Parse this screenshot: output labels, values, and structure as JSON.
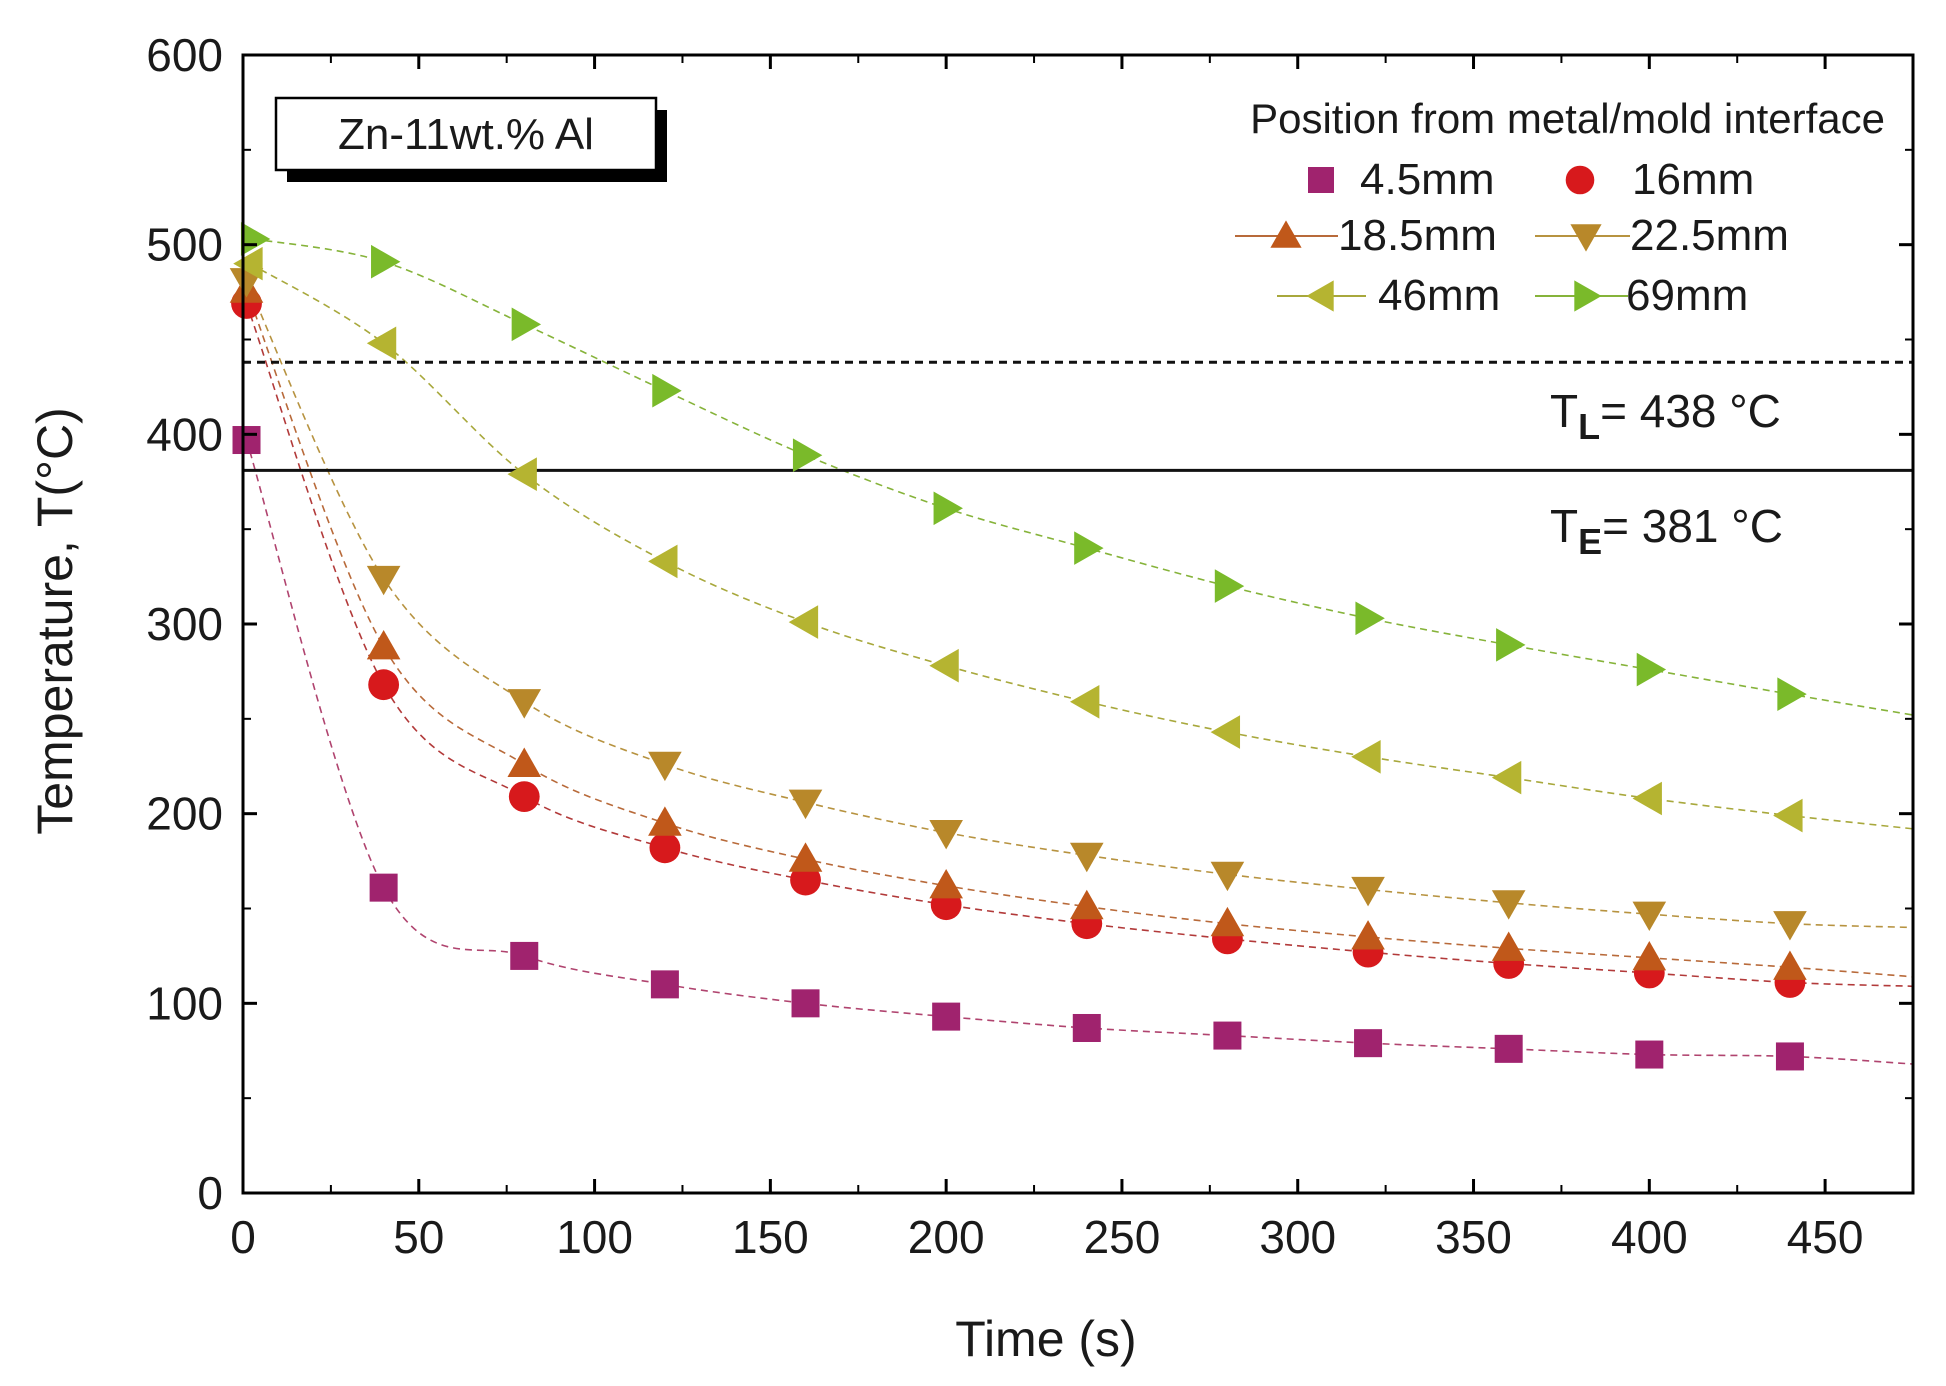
{
  "chart_data": {
    "type": "scatter",
    "title": "",
    "xlabel": "Time (s)",
    "ylabel": "Temperature, T(°C)",
    "xlim": [
      0,
      475
    ],
    "ylim": [
      0,
      600
    ],
    "xticks": [
      0,
      50,
      100,
      150,
      200,
      250,
      300,
      350,
      400,
      450
    ],
    "yticks": [
      0,
      100,
      200,
      300,
      400,
      500
    ],
    "alloy_label": "Zn-11wt.% Al",
    "legend_title": "Position from metal/mold interface",
    "liquidus": {
      "sym": "T",
      "sub": "L",
      "rest": "= 438 °C",
      "value": 438
    },
    "eutectic": {
      "sym": "T",
      "sub": "E",
      "rest": "= 381 °C",
      "value": 381
    },
    "series": [
      {
        "name": "4.5mm",
        "marker": "square",
        "color": "#a0236e",
        "line": "#b0446f",
        "x": [
          1,
          40,
          80,
          120,
          160,
          200,
          240,
          280,
          320,
          360,
          400,
          440
        ],
        "y": [
          397,
          161,
          125,
          110,
          100,
          93,
          87,
          83,
          79,
          76,
          73,
          72
        ],
        "fit_end": 68
      },
      {
        "name": "16mm",
        "marker": "circle",
        "color": "#d7191c",
        "line": "#b23a3a",
        "x": [
          1,
          40,
          80,
          120,
          160,
          200,
          240,
          280,
          320,
          360,
          400,
          440
        ],
        "y": [
          469,
          268,
          209,
          182,
          165,
          152,
          142,
          134,
          127,
          121,
          116,
          111
        ],
        "fit_end": 109
      },
      {
        "name": "18.5mm",
        "marker": "triangle-up",
        "color": "#c0581a",
        "line": "#b86a3a",
        "x": [
          1,
          40,
          80,
          120,
          160,
          200,
          240,
          280,
          320,
          360,
          400,
          440
        ],
        "y": [
          476,
          288,
          226,
          195,
          176,
          162,
          151,
          142,
          135,
          129,
          124,
          119
        ],
        "fit_end": 114
      },
      {
        "name": "22.5mm",
        "marker": "triangle-down",
        "color": "#b8882a",
        "line": "#b79340",
        "x": [
          1,
          40,
          80,
          120,
          160,
          200,
          240,
          280,
          320,
          360,
          400,
          440
        ],
        "y": [
          481,
          324,
          259,
          226,
          206,
          190,
          178,
          168,
          160,
          153,
          147,
          142
        ],
        "fit_end": 140
      },
      {
        "name": "46mm",
        "marker": "triangle-left",
        "color": "#b5b431",
        "line": "#a8a83c",
        "x": [
          2,
          40,
          80,
          120,
          160,
          200,
          240,
          280,
          320,
          360,
          400,
          440
        ],
        "y": [
          490,
          448,
          379,
          333,
          301,
          278,
          259,
          243,
          230,
          219,
          208,
          199
        ],
        "fit_end": 192
      },
      {
        "name": "69mm",
        "marker": "triangle-right",
        "color": "#7aba2a",
        "line": "#86b33a",
        "x": [
          3,
          40,
          80,
          120,
          160,
          200,
          240,
          280,
          320,
          360,
          400,
          440
        ],
        "y": [
          503,
          491,
          458,
          423,
          389,
          361,
          340,
          320,
          303,
          289,
          276,
          263
        ],
        "fit_end": 252
      }
    ]
  }
}
